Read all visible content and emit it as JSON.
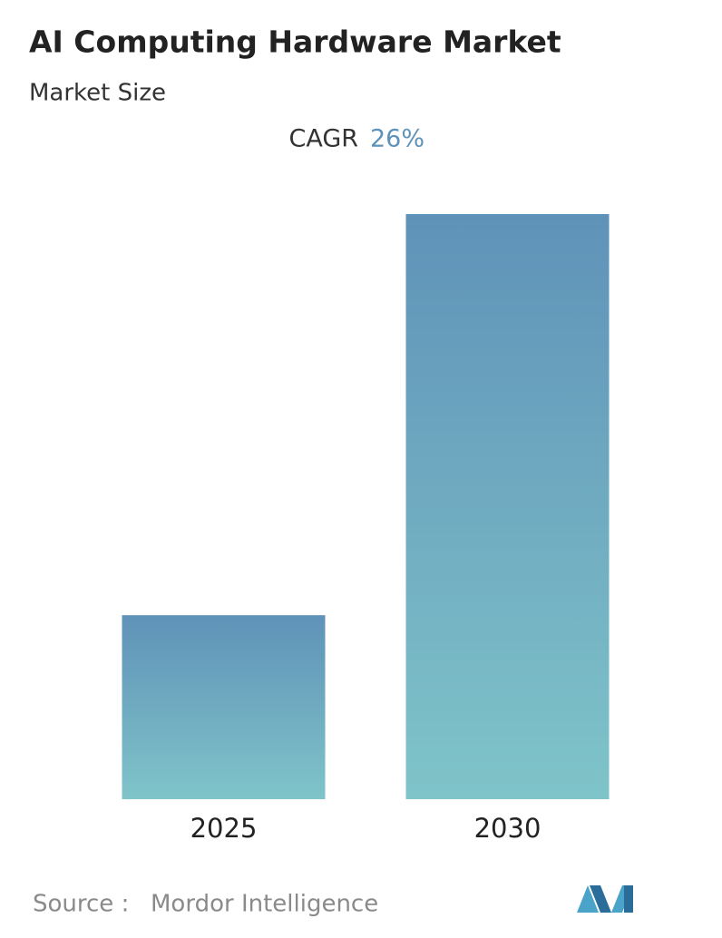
{
  "chart_data": {
    "type": "bar",
    "title": "AI Computing Hardware Market",
    "subtitle": "Market Size",
    "cagr_label": "CAGR",
    "cagr_value": "26%",
    "categories": [
      "2025",
      "2030"
    ],
    "values": [
      1.0,
      3.18
    ],
    "color": "#6a9fbe",
    "source_label": "Source :",
    "source": "Mordor Intelligence"
  }
}
